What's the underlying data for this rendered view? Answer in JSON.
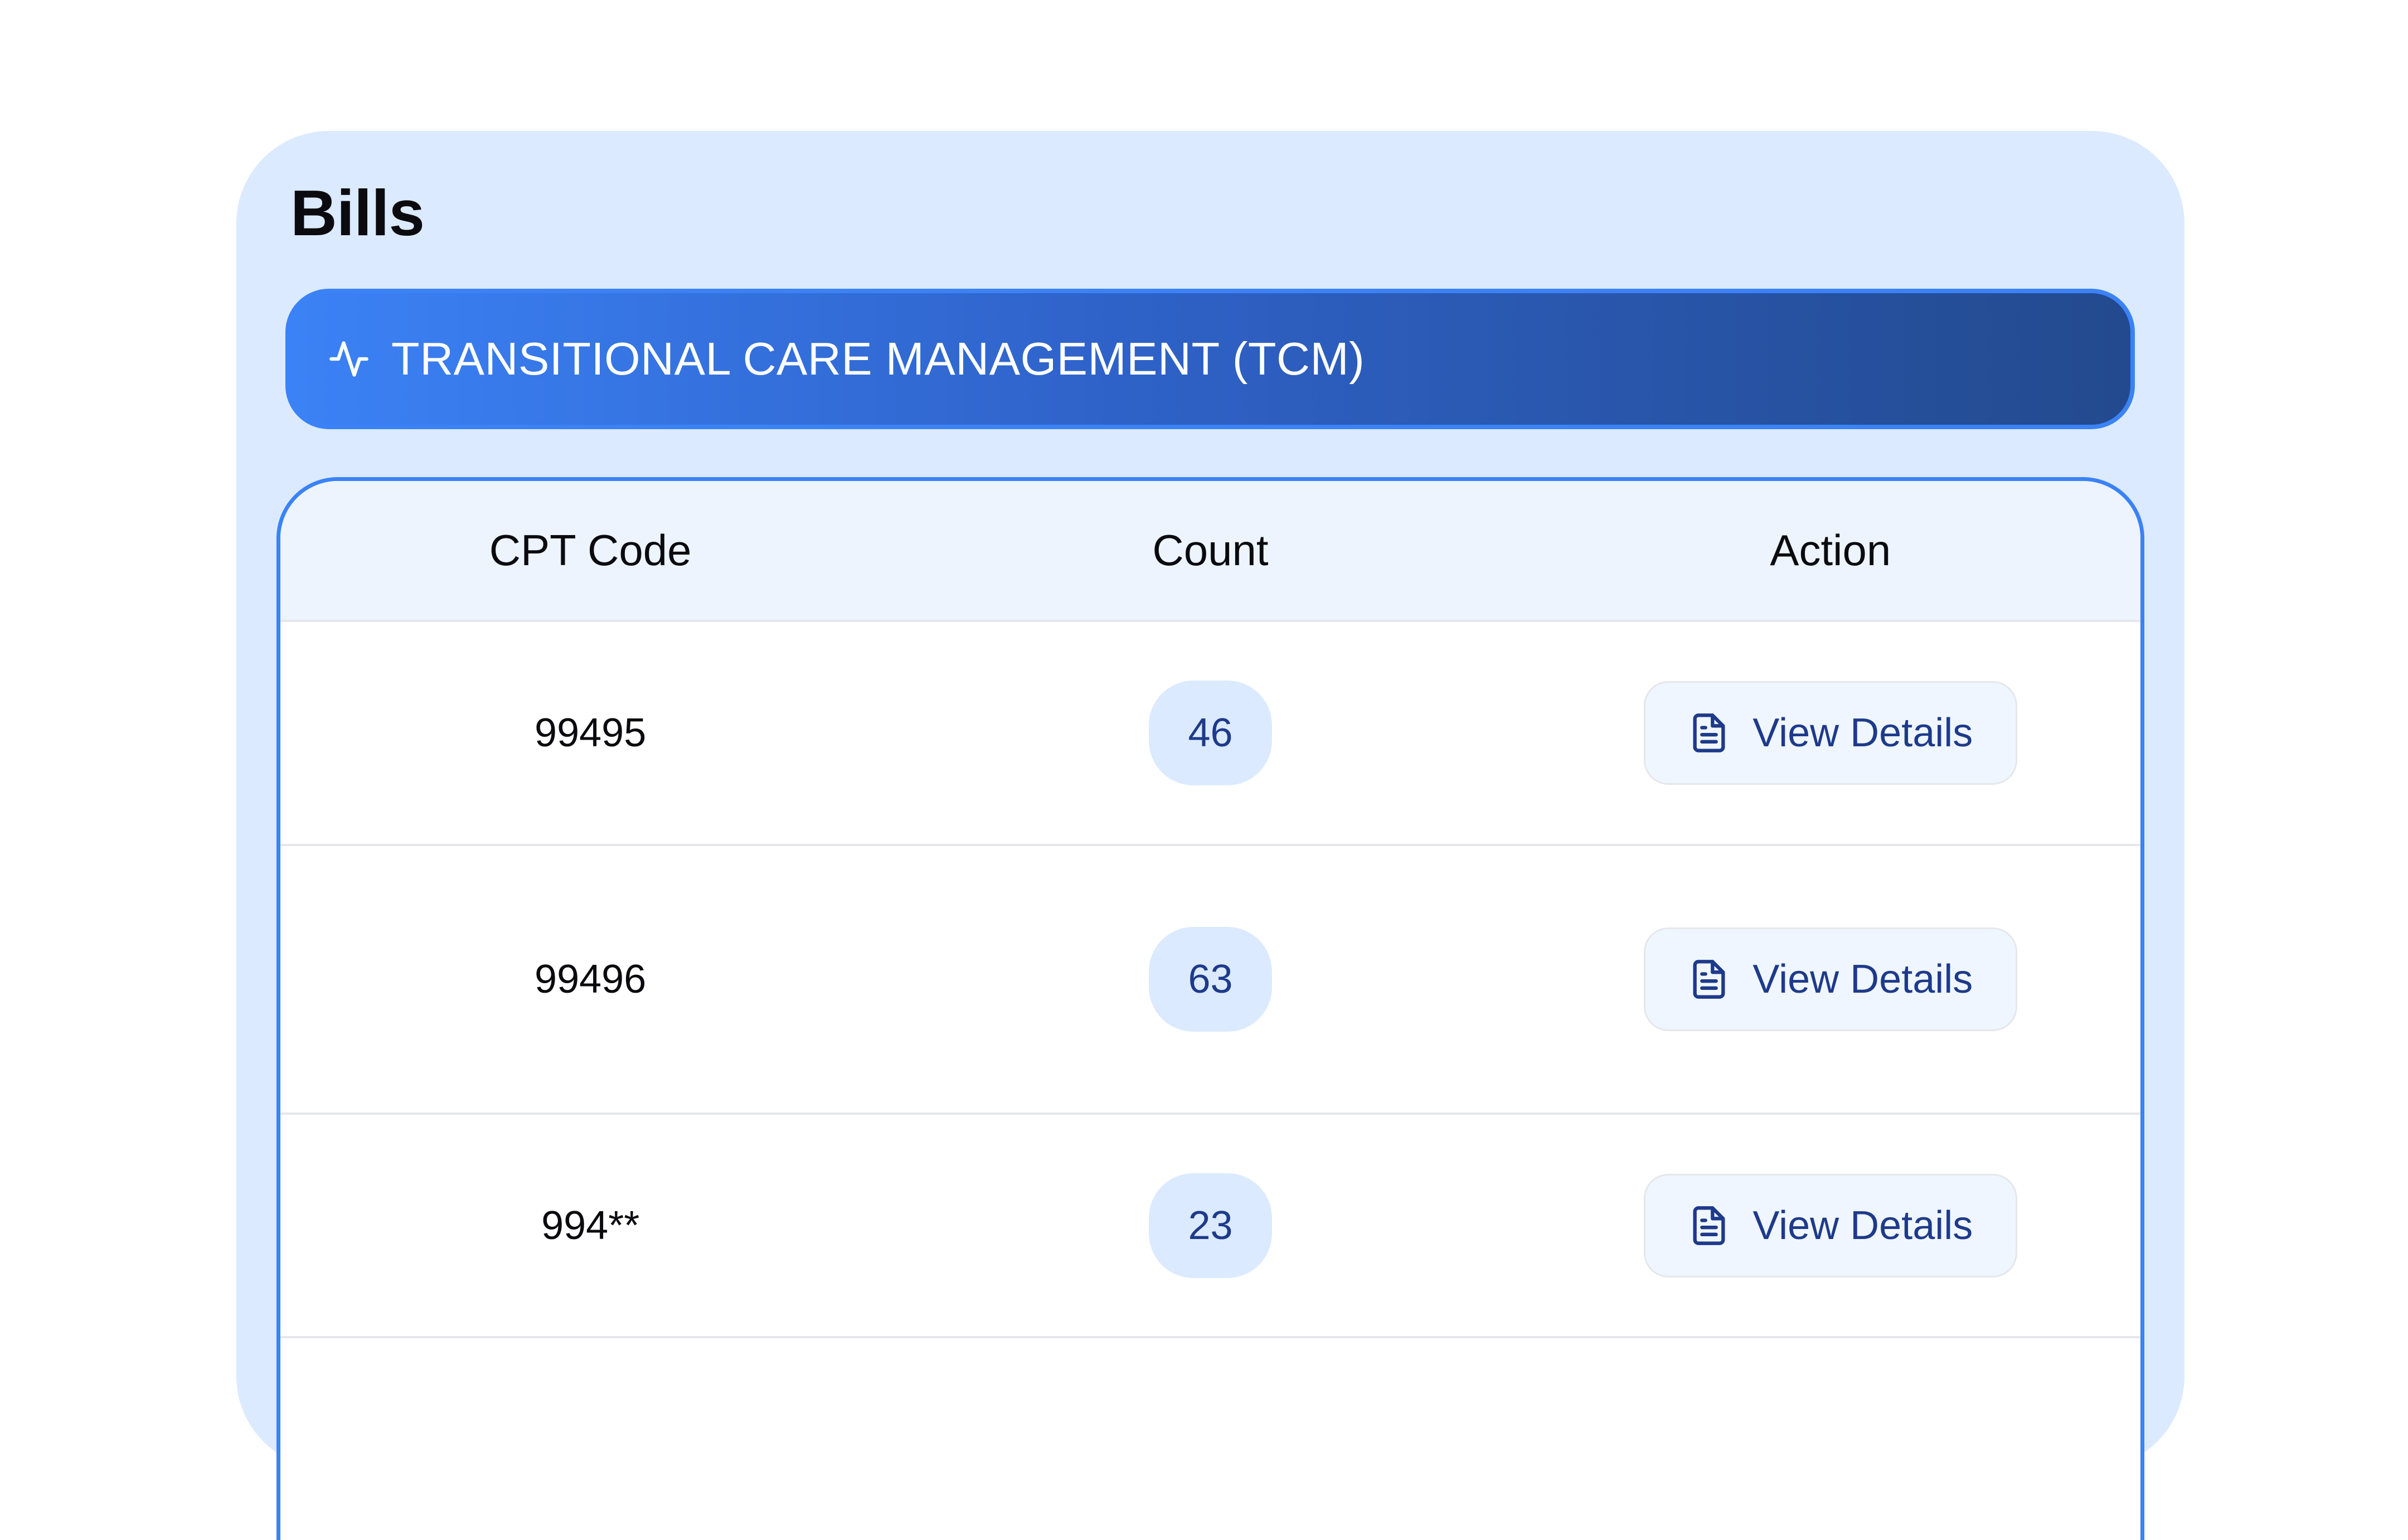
{
  "page": {
    "title": "Bills"
  },
  "section": {
    "title": "TRANSITIONAL CARE MANAGEMENT (TCM)",
    "icon": "activity-icon"
  },
  "table": {
    "headers": [
      "CPT Code",
      "Count",
      "Action"
    ],
    "rows": [
      {
        "code": "99495",
        "count": "46",
        "action": "View Details"
      },
      {
        "code": "99496",
        "count": "63",
        "action": "View Details"
      },
      {
        "code": "994**",
        "count": "23",
        "action": "View Details"
      }
    ]
  },
  "colors": {
    "accent": "#3b82f6",
    "card_bg": "#dbeafe",
    "badge_text": "#1e3a8a"
  }
}
